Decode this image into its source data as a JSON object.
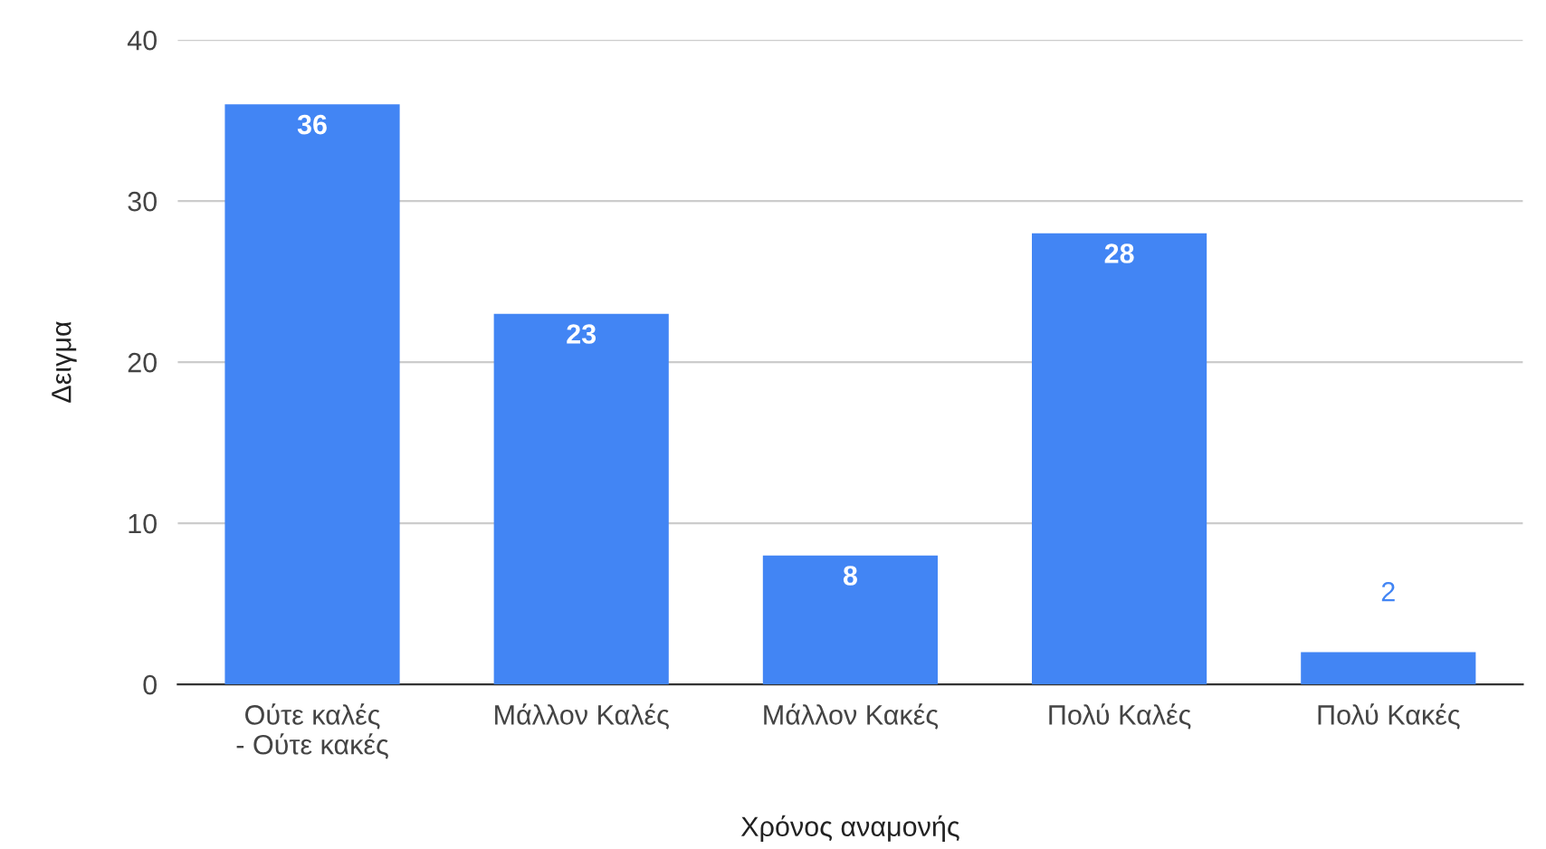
{
  "chart_data": {
    "type": "bar",
    "xlabel": "Χρόνος αναμονής",
    "ylabel": "Δειγμα",
    "categories": [
      "Ούτε καλές - Ούτε κακές",
      "Μάλλον Καλές",
      "Μάλλον Κακές",
      "Πολύ Καλές",
      "Πολύ Κακές"
    ],
    "values": [
      36,
      23,
      8,
      28,
      2
    ],
    "color": "#4285f4",
    "ylim": [
      0,
      40
    ],
    "yticks": [
      0,
      10,
      20,
      30,
      40
    ],
    "grid": "y",
    "data_labels": true
  }
}
